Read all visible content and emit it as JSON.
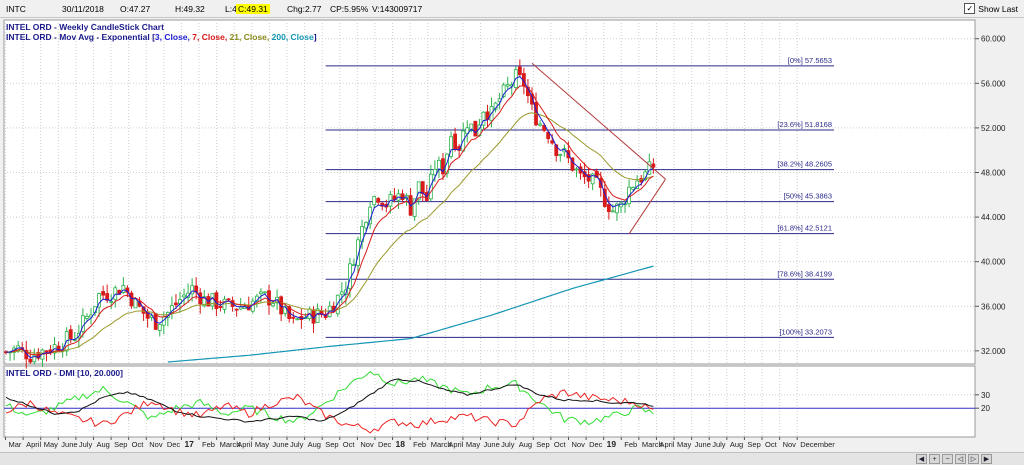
{
  "info_bar": {
    "symbol": "INTC",
    "date": "30/11/2018",
    "open": "O:47.27",
    "high": "H:49.32",
    "low": "L:46.59",
    "close": "C:49.31",
    "change": "Chg:2.77",
    "change_pct": "CP:5.95%",
    "volume": "V:143009717",
    "show_last_label": "Show Last",
    "show_last_checked": true
  },
  "legend": {
    "title": "INTEL ORD - Weekly CandleStick Chart",
    "ma_prefix": "INTEL ORD - Mov Avg - Exponential [",
    "ma_params": [
      "3, Close, ",
      "7, Close, ",
      "21, Close, ",
      "200, Close"
    ],
    "ma_suffix": "]",
    "dmi_title": "INTEL ORD - DMI [10, 20.000]"
  },
  "colors": {
    "background": "#ffffff",
    "grid": "#cfcfcf",
    "candle_up": "#2bb24c",
    "candle_down": "#d81a1a",
    "ema3": "#1f1fd0",
    "ema7": "#d81a1a",
    "ema21": "#9a9a2a",
    "ema200": "#1496b4",
    "fib": "#2a2a8a",
    "trend": "#b43c3c",
    "dmi_plus": "#33dd33",
    "dmi_minus": "#ee2222",
    "adx": "#111111",
    "dmi_level": "#3333cc"
  },
  "icons": [
    "checkbox-icon",
    "scroll-left-icon",
    "scroll-right-icon",
    "zoom-in-icon",
    "zoom-out-icon",
    "pan-left-icon",
    "pan-right-icon"
  ],
  "chart_data": {
    "type": "candlestick",
    "title": "INTEL ORD - Weekly CandleStick Chart",
    "price_axis": {
      "ylim": [
        31.0,
        61.5
      ],
      "ticks": [
        "60.000",
        "56.000",
        "52.000",
        "48.000",
        "44.000",
        "40.000",
        "36.000",
        "32.000"
      ],
      "tick_values": [
        60,
        56,
        52,
        48,
        44,
        40,
        36,
        32
      ]
    },
    "x_axis_months": [
      "Mar",
      "April",
      "May",
      "June",
      "July",
      "Aug",
      "Sep",
      "Oct",
      "Nov",
      "Dec",
      "17",
      "Feb",
      "March",
      "April",
      "May",
      "June",
      "July",
      "Aug",
      "Sep",
      "Oct",
      "Nov",
      "Dec",
      "18",
      "Feb",
      "March",
      "April",
      "May",
      "June",
      "July",
      "Aug",
      "Sep",
      "Oct",
      "Nov",
      "Dec",
      "19",
      "Feb",
      "March",
      "April",
      "May",
      "June",
      "July",
      "Aug",
      "Sep",
      "Oct",
      "Nov",
      "December"
    ],
    "month_start": "2016-03",
    "bold_labels": [
      "17",
      "18",
      "19"
    ],
    "price_anchors": [
      [
        0,
        31.9
      ],
      [
        3,
        32.2
      ],
      [
        6,
        31.6
      ],
      [
        9,
        32.0
      ],
      [
        12,
        32.4
      ],
      [
        15,
        33.0
      ],
      [
        17,
        33.4
      ],
      [
        20,
        35.0
      ],
      [
        23,
        37.0
      ],
      [
        26,
        37.2
      ],
      [
        29,
        37.8
      ],
      [
        32,
        36.2
      ],
      [
        35,
        35.0
      ],
      [
        37,
        34.6
      ],
      [
        40,
        35.4
      ],
      [
        43,
        36.6
      ],
      [
        46,
        37.6
      ],
      [
        49,
        36.6
      ],
      [
        52,
        36.3
      ],
      [
        55,
        36.0
      ],
      [
        58,
        36.0
      ],
      [
        61,
        36.4
      ],
      [
        64,
        36.8
      ],
      [
        66,
        36.6
      ],
      [
        69,
        35.2
      ],
      [
        71,
        34.4
      ],
      [
        73,
        35.0
      ],
      [
        76,
        35.2
      ],
      [
        79,
        35.4
      ],
      [
        82,
        36.8
      ],
      [
        84,
        38.0
      ],
      [
        86,
        40.5
      ],
      [
        88,
        43.0
      ],
      [
        90,
        45.6
      ],
      [
        92,
        46.0
      ],
      [
        94,
        45.2
      ],
      [
        96,
        45.6
      ],
      [
        98,
        46.2
      ],
      [
        100,
        44.8
      ],
      [
        102,
        46.8
      ],
      [
        104,
        45.6
      ],
      [
        106,
        48.6
      ],
      [
        108,
        48.4
      ],
      [
        110,
        51.4
      ],
      [
        112,
        50.4
      ],
      [
        114,
        52.6
      ],
      [
        116,
        51.6
      ],
      [
        118,
        53.8
      ],
      [
        120,
        53.2
      ],
      [
        122,
        54.6
      ],
      [
        124,
        55.6
      ],
      [
        126,
        56.5
      ],
      [
        128,
        56.0
      ],
      [
        130,
        53.6
      ],
      [
        132,
        52.4
      ],
      [
        134,
        51.6
      ],
      [
        136,
        50.2
      ],
      [
        138,
        49.6
      ],
      [
        140,
        48.6
      ],
      [
        142,
        47.6
      ],
      [
        144,
        47.4
      ],
      [
        146,
        46.8
      ],
      [
        148,
        45.6
      ],
      [
        150,
        44.6
      ],
      [
        152,
        45.0
      ],
      [
        154,
        46.6
      ],
      [
        156,
        47.4
      ],
      [
        158,
        47.8
      ],
      [
        160,
        48.6
      ]
    ],
    "ema200_anchors": [
      [
        40,
        31.0
      ],
      [
        60,
        31.6
      ],
      [
        80,
        32.4
      ],
      [
        100,
        33.1
      ],
      [
        120,
        35.2
      ],
      [
        140,
        37.6
      ],
      [
        160,
        39.6
      ]
    ],
    "fib_levels": [
      {
        "label": "[0%] 57.5653",
        "value": 57.5653
      },
      {
        "label": "[23.6%] 51.8168",
        "value": 51.8168
      },
      {
        "label": "[38.2%] 48.2605",
        "value": 48.2605
      },
      {
        "label": "[50%] 45.3863",
        "value": 45.3863
      },
      {
        "label": "[61.8%] 42.5121",
        "value": 42.5121
      },
      {
        "label": "[78.6%] 38.4199",
        "value": 38.4199
      },
      {
        "label": "[100%] 33.2073",
        "value": 33.2073
      }
    ],
    "fib_start_week": 79,
    "trend_lines": [
      [
        [
          130,
          57.8
        ],
        [
          163,
          47.4
        ]
      ],
      [
        [
          154,
          42.5
        ],
        [
          163,
          47.4
        ]
      ]
    ],
    "dmi": {
      "ylim": [
        0,
        50
      ],
      "ticks": [
        "30",
        "20"
      ],
      "tick_values": [
        30,
        20
      ],
      "level": 20,
      "plus_anchors": [
        [
          0,
          22
        ],
        [
          6,
          14
        ],
        [
          12,
          20
        ],
        [
          18,
          28
        ],
        [
          24,
          34
        ],
        [
          30,
          24
        ],
        [
          36,
          12
        ],
        [
          42,
          20
        ],
        [
          48,
          24
        ],
        [
          54,
          16
        ],
        [
          60,
          20
        ],
        [
          66,
          14
        ],
        [
          72,
          10
        ],
        [
          78,
          22
        ],
        [
          84,
          36
        ],
        [
          90,
          48
        ],
        [
          96,
          38
        ],
        [
          102,
          42
        ],
        [
          108,
          36
        ],
        [
          114,
          30
        ],
        [
          120,
          36
        ],
        [
          126,
          38
        ],
        [
          132,
          24
        ],
        [
          138,
          12
        ],
        [
          144,
          10
        ],
        [
          150,
          14
        ],
        [
          156,
          20
        ],
        [
          160,
          16
        ]
      ],
      "minus_anchors": [
        [
          0,
          18
        ],
        [
          6,
          24
        ],
        [
          12,
          16
        ],
        [
          18,
          12
        ],
        [
          24,
          8
        ],
        [
          30,
          16
        ],
        [
          36,
          26
        ],
        [
          42,
          18
        ],
        [
          48,
          14
        ],
        [
          54,
          22
        ],
        [
          60,
          16
        ],
        [
          66,
          24
        ],
        [
          72,
          28
        ],
        [
          78,
          16
        ],
        [
          84,
          8
        ],
        [
          90,
          4
        ],
        [
          96,
          10
        ],
        [
          102,
          8
        ],
        [
          108,
          12
        ],
        [
          114,
          14
        ],
        [
          120,
          10
        ],
        [
          126,
          8
        ],
        [
          132,
          26
        ],
        [
          138,
          32
        ],
        [
          144,
          28
        ],
        [
          150,
          26
        ],
        [
          156,
          24
        ],
        [
          160,
          18
        ]
      ],
      "adx_anchors": [
        [
          0,
          28
        ],
        [
          6,
          22
        ],
        [
          12,
          16
        ],
        [
          18,
          18
        ],
        [
          24,
          28
        ],
        [
          30,
          32
        ],
        [
          36,
          26
        ],
        [
          42,
          18
        ],
        [
          48,
          14
        ],
        [
          54,
          12
        ],
        [
          60,
          10
        ],
        [
          66,
          12
        ],
        [
          72,
          14
        ],
        [
          78,
          10
        ],
        [
          84,
          18
        ],
        [
          90,
          30
        ],
        [
          96,
          42
        ],
        [
          102,
          40
        ],
        [
          108,
          34
        ],
        [
          114,
          30
        ],
        [
          120,
          34
        ],
        [
          126,
          38
        ],
        [
          132,
          30
        ],
        [
          138,
          26
        ],
        [
          144,
          26
        ],
        [
          150,
          24
        ],
        [
          156,
          24
        ],
        [
          160,
          22
        ]
      ]
    }
  }
}
